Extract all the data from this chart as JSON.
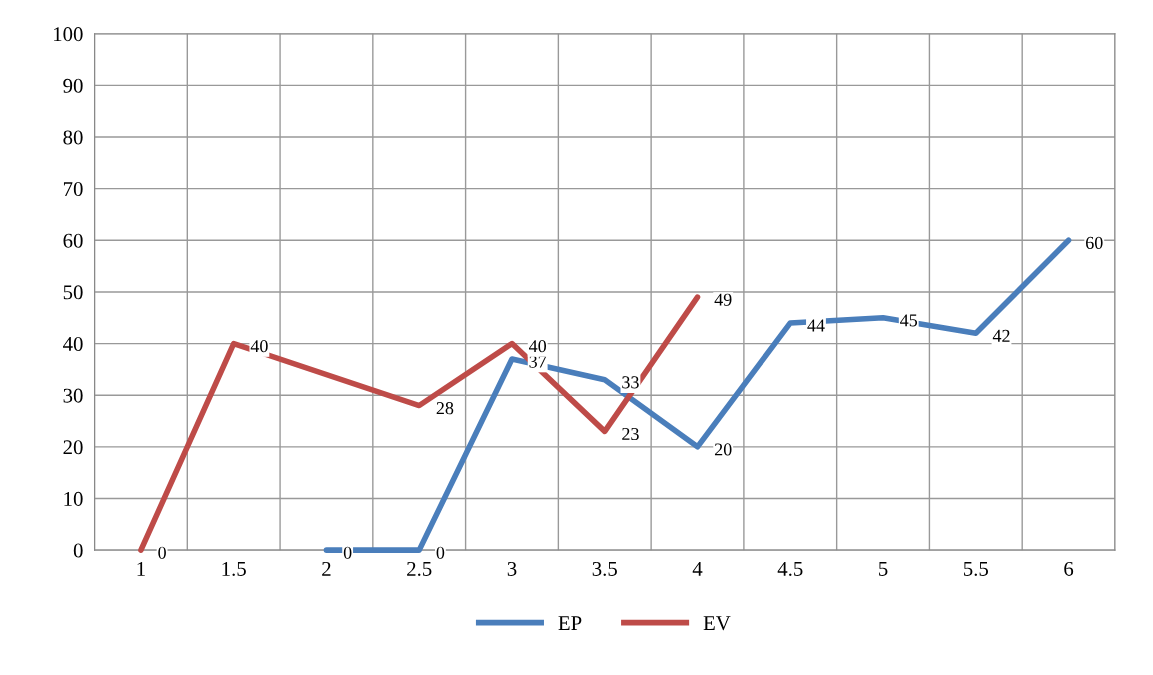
{
  "chart_data": {
    "type": "line",
    "categories": [
      "1",
      "1.5",
      "2",
      "2.5",
      "3",
      "3.5",
      "4",
      "4.5",
      "5",
      "5.5",
      "6"
    ],
    "series": [
      {
        "name": "EP",
        "color": "#4a7ebb",
        "values": [
          null,
          null,
          0,
          0,
          37,
          33,
          20,
          44,
          45,
          42,
          60
        ]
      },
      {
        "name": "EV",
        "color": "#be4b48",
        "values": [
          0,
          40,
          null,
          28,
          40,
          23,
          49,
          null,
          null,
          null,
          null
        ]
      }
    ],
    "ylim": [
      0,
      100
    ],
    "yticks": [
      0,
      10,
      20,
      30,
      40,
      50,
      60,
      70,
      80,
      90,
      100
    ],
    "grid": true,
    "legend": "bottom",
    "data_labels": true,
    "marker": "none",
    "line_style": "solid"
  }
}
